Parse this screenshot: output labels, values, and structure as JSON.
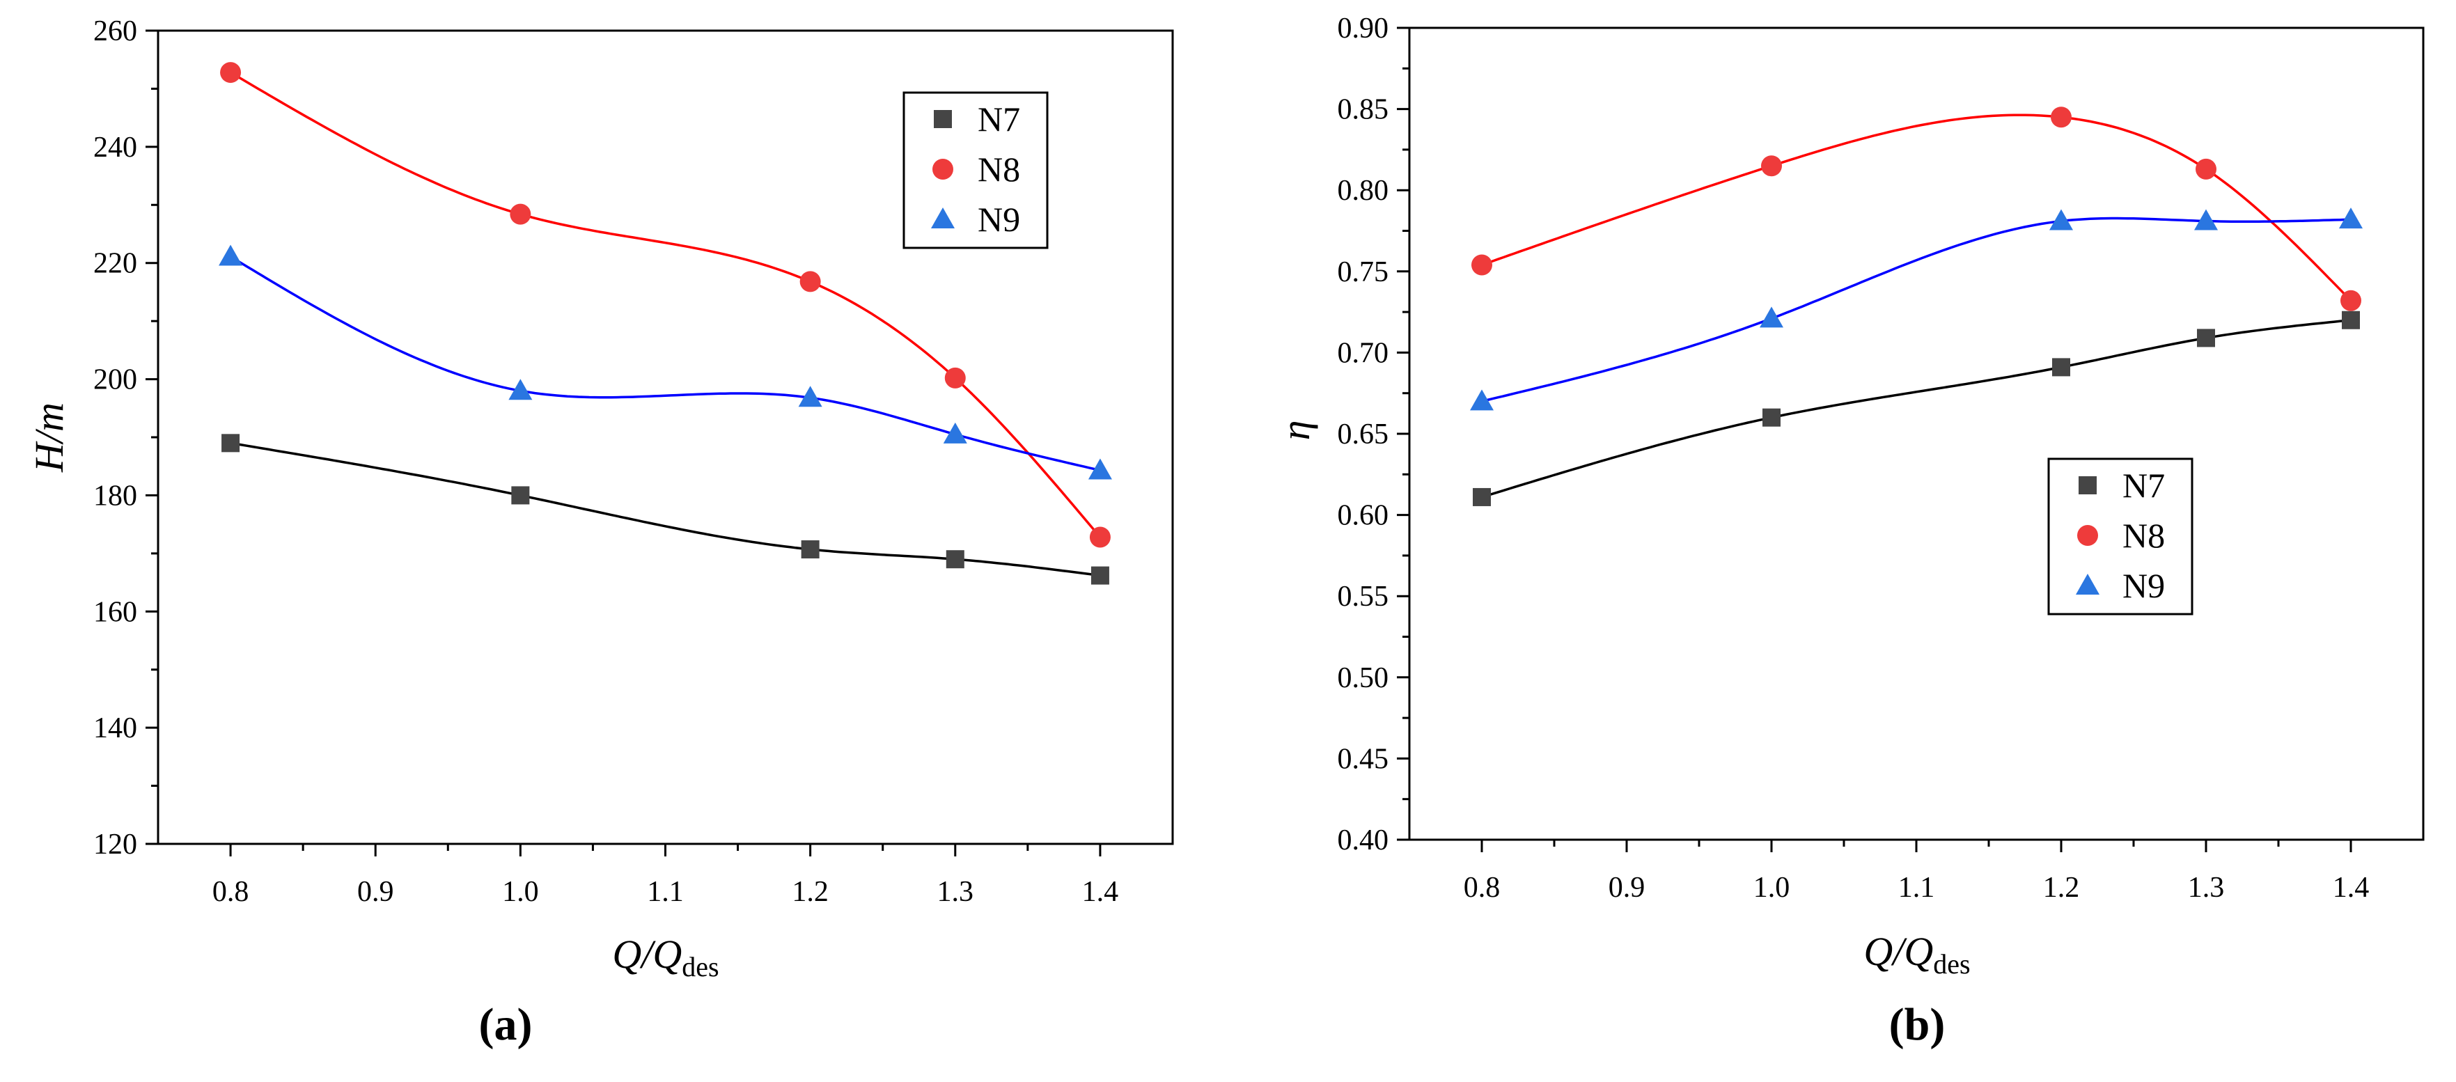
{
  "chart_data": [
    {
      "type": "line",
      "panel_label": "(a)",
      "title": "",
      "xlabel": {
        "main": "Q/Q",
        "sub": "des"
      },
      "ylabel": "H/m",
      "xlim": [
        0.75,
        1.45
      ],
      "ylim": [
        120,
        260
      ],
      "xticks": [
        0.8,
        0.9,
        1.0,
        1.1,
        1.2,
        1.3,
        1.4
      ],
      "xtick_labels": [
        "0.8",
        "0.9",
        "1.0",
        "1.1",
        "1.2",
        "1.3",
        "1.4"
      ],
      "yticks": [
        120,
        140,
        160,
        180,
        200,
        220,
        240,
        260
      ],
      "ytick_labels": [
        "120",
        "140",
        "160",
        "180",
        "200",
        "220",
        "240",
        "260"
      ],
      "legend_position": "top-right",
      "x": [
        0.8,
        1.0,
        1.2,
        1.3,
        1.4
      ],
      "series": [
        {
          "name": "N7",
          "marker": "square",
          "marker_color": "#454545",
          "line_color": "#000000",
          "values": [
            189.0,
            180.0,
            170.7,
            169.0,
            166.2
          ]
        },
        {
          "name": "N8",
          "marker": "circle",
          "marker_color": "#ee3b3b",
          "line_color": "#ff0000",
          "values": [
            252.8,
            228.4,
            216.8,
            200.2,
            172.8
          ]
        },
        {
          "name": "N9",
          "marker": "triangle",
          "marker_color": "#2a76e0",
          "line_color": "#0000ff",
          "values": [
            221.1,
            198.0,
            196.8,
            190.5,
            184.3
          ]
        }
      ]
    },
    {
      "type": "line",
      "panel_label": "(b)",
      "title": "",
      "xlabel": {
        "main": "Q/Q",
        "sub": "des"
      },
      "ylabel": "η",
      "xlim": [
        0.75,
        1.45
      ],
      "ylim": [
        0.4,
        0.9
      ],
      "xticks": [
        0.8,
        0.9,
        1.0,
        1.1,
        1.2,
        1.3,
        1.4
      ],
      "xtick_labels": [
        "0.8",
        "0.9",
        "1.0",
        "1.1",
        "1.2",
        "1.3",
        "1.4"
      ],
      "yticks": [
        0.4,
        0.45,
        0.5,
        0.55,
        0.6,
        0.65,
        0.7,
        0.75,
        0.8,
        0.85,
        0.9
      ],
      "ytick_labels": [
        "0.40",
        "0.45",
        "0.50",
        "0.55",
        "0.60",
        "0.65",
        "0.70",
        "0.75",
        "0.80",
        "0.85",
        "0.90"
      ],
      "legend_position": "center-right",
      "x": [
        0.8,
        1.0,
        1.2,
        1.3,
        1.4
      ],
      "series": [
        {
          "name": "N7",
          "marker": "square",
          "marker_color": "#454545",
          "line_color": "#000000",
          "values": [
            0.611,
            0.66,
            0.691,
            0.709,
            0.72
          ]
        },
        {
          "name": "N8",
          "marker": "circle",
          "marker_color": "#ee3b3b",
          "line_color": "#ff0000",
          "values": [
            0.754,
            0.815,
            0.845,
            0.813,
            0.732
          ]
        },
        {
          "name": "N9",
          "marker": "triangle",
          "marker_color": "#2a76e0",
          "line_color": "#0000ff",
          "values": [
            0.67,
            0.721,
            0.781,
            0.781,
            0.782
          ]
        }
      ]
    }
  ]
}
